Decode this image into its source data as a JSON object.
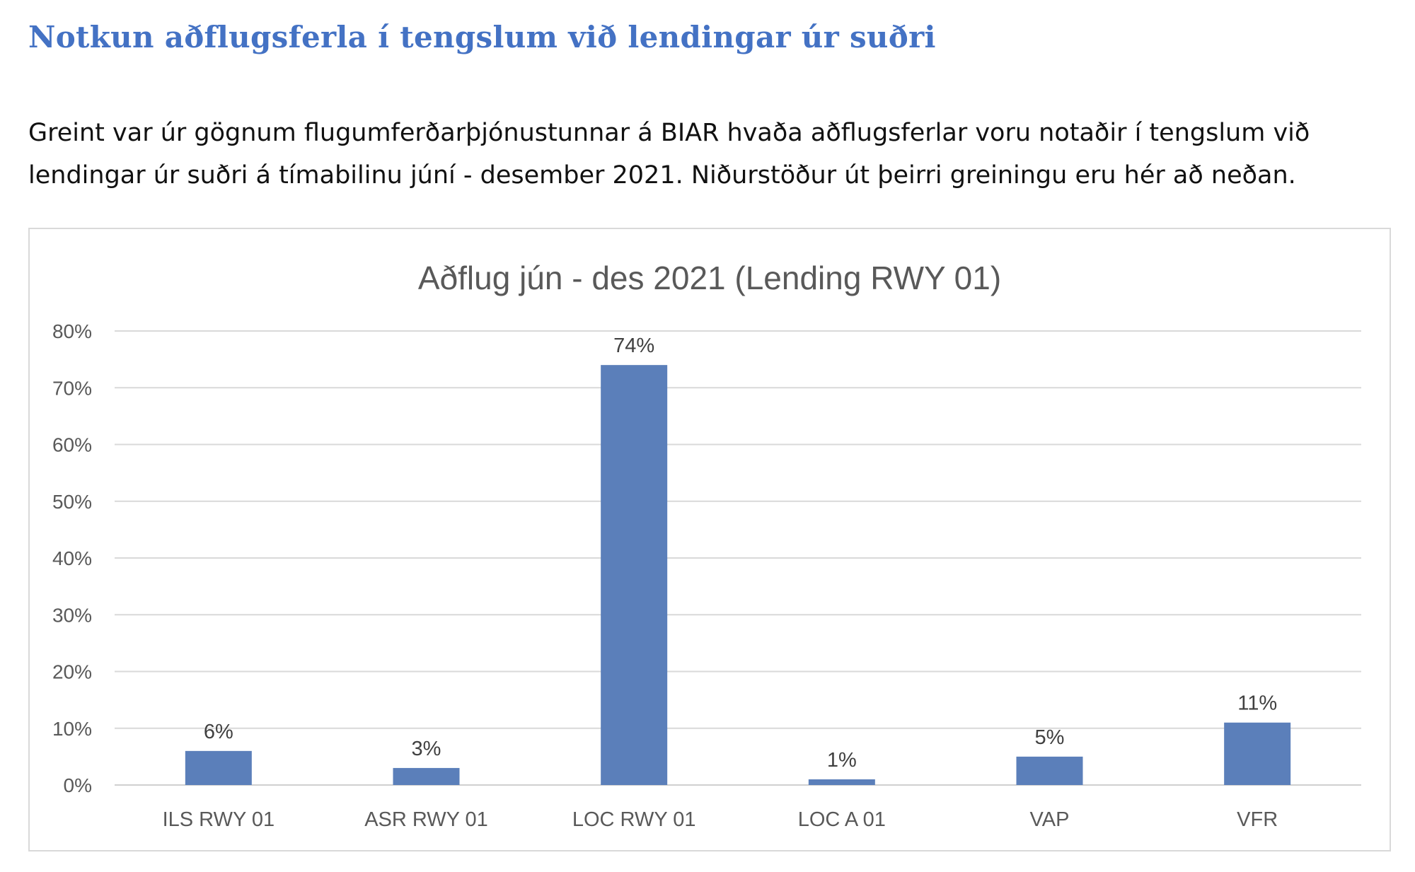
{
  "heading": "Notkun aðflugsferla í tengslum við lendingar úr suðri",
  "intro": {
    "line1": "Greint var úr gögnum flugumferðarþjónustunnar á BIAR hvaða aðflugsferlar voru notaðir í tengslum við",
    "line2": "lendingar úr suðri á tímabilinu júní - desember 2021. Niðurstöður út þeirri greiningu eru hér að neðan."
  },
  "chart_data": {
    "type": "bar",
    "title": "Aðflug jún - des 2021 (Lending RWY 01)",
    "categories": [
      "ILS RWY 01",
      "ASR RWY 01",
      "LOC RWY 01",
      "LOC A 01",
      "VAP",
      "VFR"
    ],
    "values": [
      6,
      3,
      74,
      1,
      5,
      11
    ],
    "data_labels": [
      "6%",
      "3%",
      "74%",
      "1%",
      "5%",
      "11%"
    ],
    "yticks": [
      "0%",
      "10%",
      "20%",
      "30%",
      "40%",
      "50%",
      "60%",
      "70%",
      "80%"
    ],
    "ylim": [
      0,
      80
    ],
    "grid": true,
    "legend": "none",
    "bar_color": "#5b7fba"
  }
}
